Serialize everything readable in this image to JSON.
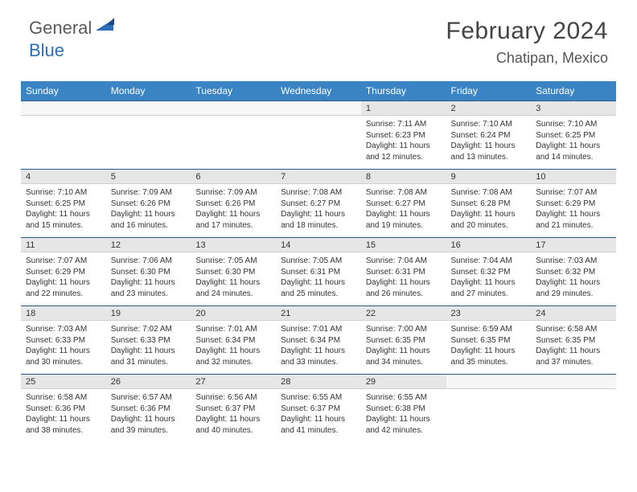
{
  "brand": {
    "part1": "General",
    "part2": "Blue"
  },
  "title": "February 2024",
  "location": "Chatipan, Mexico",
  "colors": {
    "header_bg": "#3b84c4",
    "row_divider": "#2d5a8a",
    "daynum_bg": "#e6e6e6",
    "text": "#333333",
    "brand_gray": "#5a5a5a",
    "brand_blue": "#2d6fb6"
  },
  "day_headers": [
    "Sunday",
    "Monday",
    "Tuesday",
    "Wednesday",
    "Thursday",
    "Friday",
    "Saturday"
  ],
  "weeks": [
    [
      {
        "n": "",
        "sunrise": "",
        "sunset": "",
        "daylight": ""
      },
      {
        "n": "",
        "sunrise": "",
        "sunset": "",
        "daylight": ""
      },
      {
        "n": "",
        "sunrise": "",
        "sunset": "",
        "daylight": ""
      },
      {
        "n": "",
        "sunrise": "",
        "sunset": "",
        "daylight": ""
      },
      {
        "n": "1",
        "sunrise": "Sunrise: 7:11 AM",
        "sunset": "Sunset: 6:23 PM",
        "daylight": "Daylight: 11 hours and 12 minutes."
      },
      {
        "n": "2",
        "sunrise": "Sunrise: 7:10 AM",
        "sunset": "Sunset: 6:24 PM",
        "daylight": "Daylight: 11 hours and 13 minutes."
      },
      {
        "n": "3",
        "sunrise": "Sunrise: 7:10 AM",
        "sunset": "Sunset: 6:25 PM",
        "daylight": "Daylight: 11 hours and 14 minutes."
      }
    ],
    [
      {
        "n": "4",
        "sunrise": "Sunrise: 7:10 AM",
        "sunset": "Sunset: 6:25 PM",
        "daylight": "Daylight: 11 hours and 15 minutes."
      },
      {
        "n": "5",
        "sunrise": "Sunrise: 7:09 AM",
        "sunset": "Sunset: 6:26 PM",
        "daylight": "Daylight: 11 hours and 16 minutes."
      },
      {
        "n": "6",
        "sunrise": "Sunrise: 7:09 AM",
        "sunset": "Sunset: 6:26 PM",
        "daylight": "Daylight: 11 hours and 17 minutes."
      },
      {
        "n": "7",
        "sunrise": "Sunrise: 7:08 AM",
        "sunset": "Sunset: 6:27 PM",
        "daylight": "Daylight: 11 hours and 18 minutes."
      },
      {
        "n": "8",
        "sunrise": "Sunrise: 7:08 AM",
        "sunset": "Sunset: 6:27 PM",
        "daylight": "Daylight: 11 hours and 19 minutes."
      },
      {
        "n": "9",
        "sunrise": "Sunrise: 7:08 AM",
        "sunset": "Sunset: 6:28 PM",
        "daylight": "Daylight: 11 hours and 20 minutes."
      },
      {
        "n": "10",
        "sunrise": "Sunrise: 7:07 AM",
        "sunset": "Sunset: 6:29 PM",
        "daylight": "Daylight: 11 hours and 21 minutes."
      }
    ],
    [
      {
        "n": "11",
        "sunrise": "Sunrise: 7:07 AM",
        "sunset": "Sunset: 6:29 PM",
        "daylight": "Daylight: 11 hours and 22 minutes."
      },
      {
        "n": "12",
        "sunrise": "Sunrise: 7:06 AM",
        "sunset": "Sunset: 6:30 PM",
        "daylight": "Daylight: 11 hours and 23 minutes."
      },
      {
        "n": "13",
        "sunrise": "Sunrise: 7:05 AM",
        "sunset": "Sunset: 6:30 PM",
        "daylight": "Daylight: 11 hours and 24 minutes."
      },
      {
        "n": "14",
        "sunrise": "Sunrise: 7:05 AM",
        "sunset": "Sunset: 6:31 PM",
        "daylight": "Daylight: 11 hours and 25 minutes."
      },
      {
        "n": "15",
        "sunrise": "Sunrise: 7:04 AM",
        "sunset": "Sunset: 6:31 PM",
        "daylight": "Daylight: 11 hours and 26 minutes."
      },
      {
        "n": "16",
        "sunrise": "Sunrise: 7:04 AM",
        "sunset": "Sunset: 6:32 PM",
        "daylight": "Daylight: 11 hours and 27 minutes."
      },
      {
        "n": "17",
        "sunrise": "Sunrise: 7:03 AM",
        "sunset": "Sunset: 6:32 PM",
        "daylight": "Daylight: 11 hours and 29 minutes."
      }
    ],
    [
      {
        "n": "18",
        "sunrise": "Sunrise: 7:03 AM",
        "sunset": "Sunset: 6:33 PM",
        "daylight": "Daylight: 11 hours and 30 minutes."
      },
      {
        "n": "19",
        "sunrise": "Sunrise: 7:02 AM",
        "sunset": "Sunset: 6:33 PM",
        "daylight": "Daylight: 11 hours and 31 minutes."
      },
      {
        "n": "20",
        "sunrise": "Sunrise: 7:01 AM",
        "sunset": "Sunset: 6:34 PM",
        "daylight": "Daylight: 11 hours and 32 minutes."
      },
      {
        "n": "21",
        "sunrise": "Sunrise: 7:01 AM",
        "sunset": "Sunset: 6:34 PM",
        "daylight": "Daylight: 11 hours and 33 minutes."
      },
      {
        "n": "22",
        "sunrise": "Sunrise: 7:00 AM",
        "sunset": "Sunset: 6:35 PM",
        "daylight": "Daylight: 11 hours and 34 minutes."
      },
      {
        "n": "23",
        "sunrise": "Sunrise: 6:59 AM",
        "sunset": "Sunset: 6:35 PM",
        "daylight": "Daylight: 11 hours and 35 minutes."
      },
      {
        "n": "24",
        "sunrise": "Sunrise: 6:58 AM",
        "sunset": "Sunset: 6:35 PM",
        "daylight": "Daylight: 11 hours and 37 minutes."
      }
    ],
    [
      {
        "n": "25",
        "sunrise": "Sunrise: 6:58 AM",
        "sunset": "Sunset: 6:36 PM",
        "daylight": "Daylight: 11 hours and 38 minutes."
      },
      {
        "n": "26",
        "sunrise": "Sunrise: 6:57 AM",
        "sunset": "Sunset: 6:36 PM",
        "daylight": "Daylight: 11 hours and 39 minutes."
      },
      {
        "n": "27",
        "sunrise": "Sunrise: 6:56 AM",
        "sunset": "Sunset: 6:37 PM",
        "daylight": "Daylight: 11 hours and 40 minutes."
      },
      {
        "n": "28",
        "sunrise": "Sunrise: 6:55 AM",
        "sunset": "Sunset: 6:37 PM",
        "daylight": "Daylight: 11 hours and 41 minutes."
      },
      {
        "n": "29",
        "sunrise": "Sunrise: 6:55 AM",
        "sunset": "Sunset: 6:38 PM",
        "daylight": "Daylight: 11 hours and 42 minutes."
      },
      {
        "n": "",
        "sunrise": "",
        "sunset": "",
        "daylight": ""
      },
      {
        "n": "",
        "sunrise": "",
        "sunset": "",
        "daylight": ""
      }
    ]
  ]
}
